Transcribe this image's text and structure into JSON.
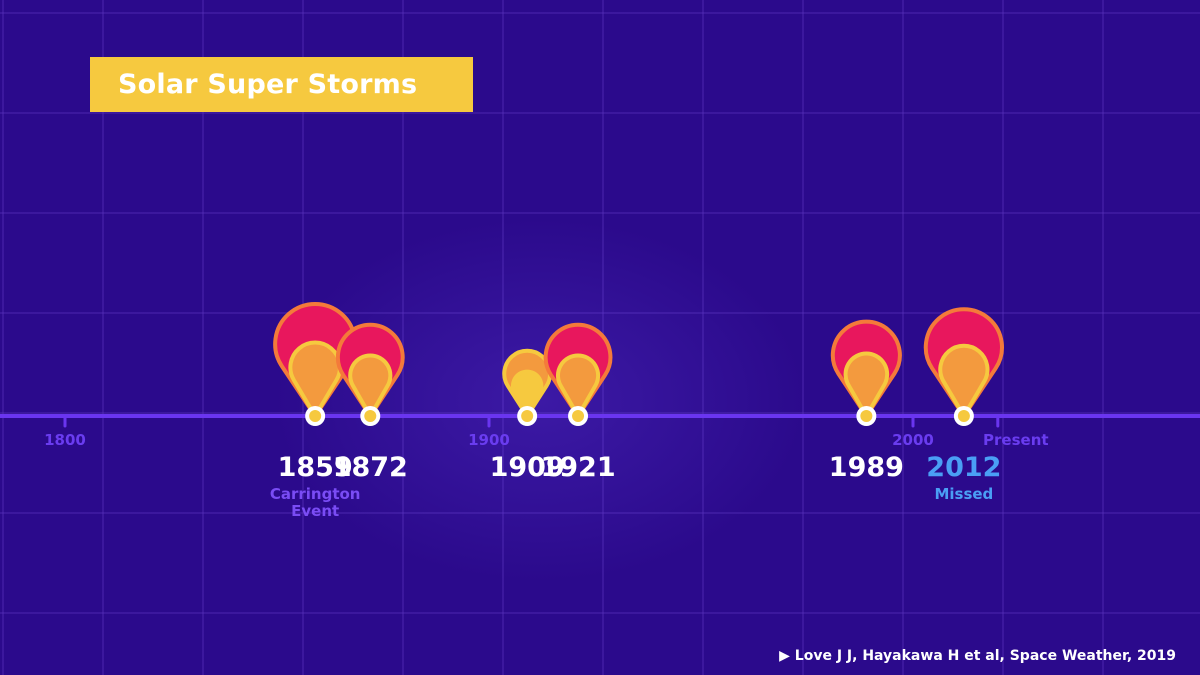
{
  "title": "Solar Super Storms",
  "axis_labels": [
    {
      "text": "1800",
      "year": 1800
    },
    {
      "text": "1900",
      "year": 1900
    },
    {
      "text": "2000",
      "year": 2000
    },
    {
      "text": "Present",
      "year": 2020
    }
  ],
  "storms": [
    {
      "year": "1859",
      "note": "Carrington\nEvent",
      "intensity": 1.0,
      "missed": false
    },
    {
      "year": "1872",
      "note": "",
      "intensity": 0.8,
      "missed": false
    },
    {
      "year": "1909",
      "note": "",
      "intensity": 0.55,
      "missed": false
    },
    {
      "year": "1921",
      "note": "",
      "intensity": 0.8,
      "missed": false
    },
    {
      "year": "1989",
      "note": "",
      "intensity": 0.83,
      "missed": false
    },
    {
      "year": "2012",
      "note": "Missed",
      "intensity": 0.95,
      "missed": true
    }
  ],
  "citation": "Love J J, Hayakawa H et al, Space Weather, 2019",
  "citation_icon": "play-triangle-icon",
  "colors": {
    "background": "#2b0a8c",
    "title_bg": "#f6c93f",
    "axis": "#6a35f0",
    "flare_outer": "#e8175d",
    "flare_outline": "#f47a3a",
    "flare_inner": "#f39a3e",
    "flare_inner_outline": "#f6c93f",
    "missed": "#4a9ff5"
  }
}
